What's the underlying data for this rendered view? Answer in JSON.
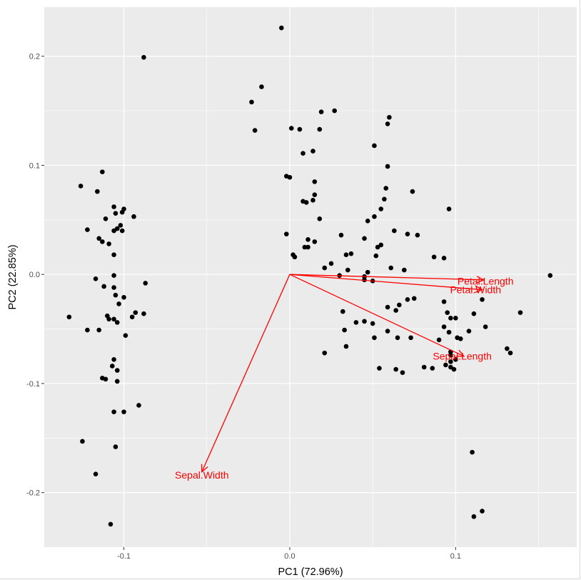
{
  "chart_data": {
    "type": "scatter",
    "title": "",
    "xlabel": "PC1 (72.96%)",
    "ylabel": "PC2 (22.85%)",
    "xlim": [
      -0.148,
      0.173
    ],
    "ylim": [
      -0.25,
      0.245
    ],
    "x_ticks": [
      -0.1,
      0.0,
      0.1
    ],
    "x_tick_labels": [
      "-0.1",
      "0.0",
      "0.1"
    ],
    "y_ticks": [
      -0.2,
      -0.1,
      0.0,
      0.1,
      0.2
    ],
    "y_tick_labels": [
      "-0.2",
      "-0.1",
      "0.0",
      "0.1",
      "0.2"
    ],
    "grid": true,
    "background_color": "#ebebeb",
    "grid_color": "#ffffff",
    "point_color": "#000000",
    "arrow_color": "#ff0000",
    "points": [
      [
        -0.088,
        0.199
      ],
      [
        -0.113,
        0.094
      ],
      [
        -0.126,
        0.081
      ],
      [
        -0.116,
        0.076
      ],
      [
        -0.106,
        0.062
      ],
      [
        -0.1,
        0.06
      ],
      [
        -0.105,
        0.056
      ],
      [
        -0.101,
        0.057
      ],
      [
        -0.094,
        0.053
      ],
      [
        -0.111,
        0.051
      ],
      [
        -0.102,
        0.045
      ],
      [
        -0.104,
        0.042
      ],
      [
        -0.106,
        0.04
      ],
      [
        -0.122,
        0.041
      ],
      [
        -0.115,
        0.033
      ],
      [
        -0.113,
        0.03
      ],
      [
        -0.109,
        0.028
      ],
      [
        -0.101,
        0.04
      ],
      [
        -0.106,
        0.018
      ],
      [
        -0.117,
        -0.004
      ],
      [
        -0.106,
        -0.001
      ],
      [
        -0.112,
        -0.011
      ],
      [
        -0.106,
        -0.012
      ],
      [
        -0.105,
        -0.019
      ],
      [
        -0.1,
        -0.021
      ],
      [
        -0.087,
        -0.008
      ],
      [
        -0.11,
        -0.038
      ],
      [
        -0.106,
        -0.041
      ],
      [
        -0.104,
        -0.044
      ],
      [
        -0.109,
        -0.041
      ],
      [
        -0.103,
        -0.027
      ],
      [
        -0.093,
        -0.035
      ],
      [
        -0.095,
        -0.039
      ],
      [
        -0.088,
        -0.036
      ],
      [
        -0.133,
        -0.039
      ],
      [
        -0.122,
        -0.051
      ],
      [
        -0.115,
        -0.051
      ],
      [
        -0.099,
        -0.056
      ],
      [
        -0.106,
        -0.078
      ],
      [
        -0.104,
        -0.088
      ],
      [
        -0.107,
        -0.084
      ],
      [
        -0.104,
        -0.098
      ],
      [
        -0.113,
        -0.095
      ],
      [
        -0.111,
        -0.096
      ],
      [
        -0.091,
        -0.12
      ],
      [
        -0.1,
        -0.126
      ],
      [
        -0.106,
        -0.126
      ],
      [
        -0.125,
        -0.153
      ],
      [
        -0.105,
        -0.158
      ],
      [
        -0.117,
        -0.183
      ],
      [
        -0.108,
        -0.229
      ],
      [
        -0.005,
        0.226
      ],
      [
        -0.017,
        0.172
      ],
      [
        -0.023,
        0.158
      ],
      [
        -0.021,
        0.132
      ],
      [
        0.019,
        0.149
      ],
      [
        0.027,
        0.15
      ],
      [
        0.006,
        0.133
      ],
      [
        0.001,
        0.134
      ],
      [
        0.018,
        0.133
      ],
      [
        0.06,
        0.144
      ],
      [
        0.059,
        0.138
      ],
      [
        0.051,
        0.118
      ],
      [
        0.008,
        0.111
      ],
      [
        0.014,
        0.113
      ],
      [
        0.059,
        0.099
      ],
      [
        -0.002,
        0.09
      ],
      [
        0.0,
        0.089
      ],
      [
        0.015,
        0.085
      ],
      [
        0.058,
        0.079
      ],
      [
        0.074,
        0.076
      ],
      [
        0.015,
        0.073
      ],
      [
        0.014,
        0.068
      ],
      [
        0.008,
        0.067
      ],
      [
        0.01,
        0.066
      ],
      [
        0.057,
        0.069
      ],
      [
        0.055,
        0.06
      ],
      [
        0.096,
        0.06
      ],
      [
        0.047,
        0.049
      ],
      [
        0.051,
        0.053
      ],
      [
        0.018,
        0.051
      ],
      [
        0.071,
        0.037
      ],
      [
        0.063,
        0.04
      ],
      [
        0.077,
        0.036
      ],
      [
        -0.002,
        0.037
      ],
      [
        0.031,
        0.036
      ],
      [
        0.045,
        0.033
      ],
      [
        0.015,
        0.03
      ],
      [
        0.011,
        0.032
      ],
      [
        0.009,
        0.025
      ],
      [
        0.055,
        0.027
      ],
      [
        0.053,
        0.025
      ],
      [
        0.002,
        0.018
      ],
      [
        0.003,
        0.016
      ],
      [
        0.011,
        0.025
      ],
      [
        0.037,
        0.019
      ],
      [
        0.034,
        0.018
      ],
      [
        0.052,
        0.017
      ],
      [
        0.087,
        0.016
      ],
      [
        0.093,
        0.015
      ],
      [
        0.025,
        0.01
      ],
      [
        0.021,
        0.006
      ],
      [
        0.047,
        0.002
      ],
      [
        0.061,
        0.006
      ],
      [
        0.069,
        0.004
      ],
      [
        0.035,
        0.004
      ],
      [
        0.03,
        -0.001
      ],
      [
        0.045,
        -0.002
      ],
      [
        0.045,
        -0.005
      ],
      [
        0.05,
        -0.006
      ],
      [
        0.157,
        -0.001
      ],
      [
        0.075,
        -0.022
      ],
      [
        0.071,
        -0.023
      ],
      [
        0.066,
        -0.028
      ],
      [
        0.059,
        -0.03
      ],
      [
        0.064,
        -0.033
      ],
      [
        0.093,
        -0.025
      ],
      [
        0.095,
        -0.035
      ],
      [
        0.097,
        -0.04
      ],
      [
        0.1,
        -0.04
      ],
      [
        0.116,
        -0.023
      ],
      [
        0.111,
        -0.036
      ],
      [
        0.139,
        -0.035
      ],
      [
        0.032,
        -0.034
      ],
      [
        0.045,
        -0.043
      ],
      [
        0.04,
        -0.044
      ],
      [
        0.05,
        -0.045
      ],
      [
        0.033,
        -0.051
      ],
      [
        0.059,
        -0.052
      ],
      [
        0.065,
        -0.058
      ],
      [
        0.093,
        -0.048
      ],
      [
        0.096,
        -0.053
      ],
      [
        0.103,
        -0.059
      ],
      [
        0.108,
        -0.052
      ],
      [
        0.118,
        -0.048
      ],
      [
        0.051,
        -0.058
      ],
      [
        0.034,
        -0.066
      ],
      [
        0.021,
        -0.072
      ],
      [
        0.073,
        -0.058
      ],
      [
        0.09,
        -0.06
      ],
      [
        0.101,
        -0.058
      ],
      [
        0.097,
        -0.071
      ],
      [
        0.131,
        -0.068
      ],
      [
        0.133,
        -0.072
      ],
      [
        0.097,
        -0.074
      ],
      [
        0.1,
        -0.078
      ],
      [
        0.094,
        -0.083
      ],
      [
        0.097,
        -0.08
      ],
      [
        0.086,
        -0.086
      ],
      [
        0.081,
        -0.085
      ],
      [
        0.064,
        -0.087
      ],
      [
        0.068,
        -0.09
      ],
      [
        0.097,
        -0.085
      ],
      [
        0.099,
        -0.087
      ],
      [
        0.054,
        -0.086
      ],
      [
        0.11,
        -0.163
      ],
      [
        0.116,
        -0.217
      ],
      [
        0.111,
        -0.222
      ]
    ],
    "arrows": [
      {
        "label": "Petal.Length",
        "x": 0.117,
        "y": -0.005,
        "label_x": 0.118,
        "label_y": -0.006
      },
      {
        "label": "Petal.Width",
        "x": 0.116,
        "y": -0.014,
        "label_x": 0.112,
        "label_y": -0.014
      },
      {
        "label": "Sepal.Length",
        "x": 0.105,
        "y": -0.075,
        "label_x": 0.104,
        "label_y": -0.075
      },
      {
        "label": "Sepal.Width",
        "x": -0.053,
        "y": -0.181,
        "label_x": -0.053,
        "label_y": -0.184
      }
    ]
  }
}
